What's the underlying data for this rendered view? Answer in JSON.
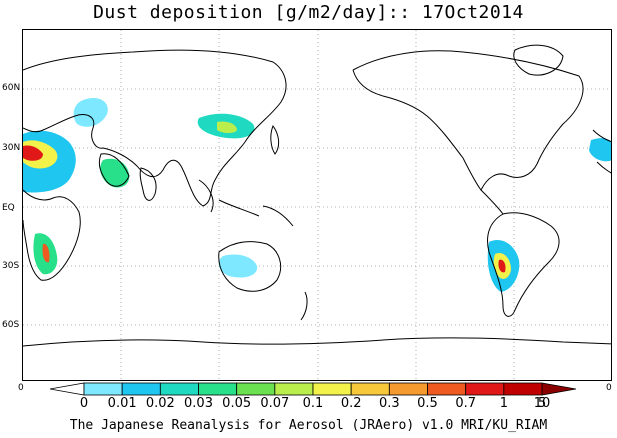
{
  "title": "Dust deposition [g/m2/day]:: 17Oct2014",
  "lat_labels": [
    "60N",
    "30N",
    "EQ",
    "30S",
    "60S"
  ],
  "colorbar": {
    "labels": [
      "0",
      "0.01",
      "0.02",
      "0.03",
      "0.05",
      "0.07",
      "0.1",
      "0.2",
      "0.3",
      "0.5",
      "0.7",
      "1",
      "5",
      "10"
    ],
    "colors": [
      "#ffffff",
      "#7de8ff",
      "#1ec6f0",
      "#1fd9c0",
      "#28e08a",
      "#6be050",
      "#b9ee4c",
      "#f2f24a",
      "#f7c83a",
      "#f59a2e",
      "#ef5a20",
      "#e01818",
      "#c00000",
      "#8a0000"
    ],
    "left_end": "0",
    "right_end": "0"
  },
  "footer": "The Japanese Reanalysis for Aerosol (JRAero) v1.0 MRI/KU_RIAM"
}
